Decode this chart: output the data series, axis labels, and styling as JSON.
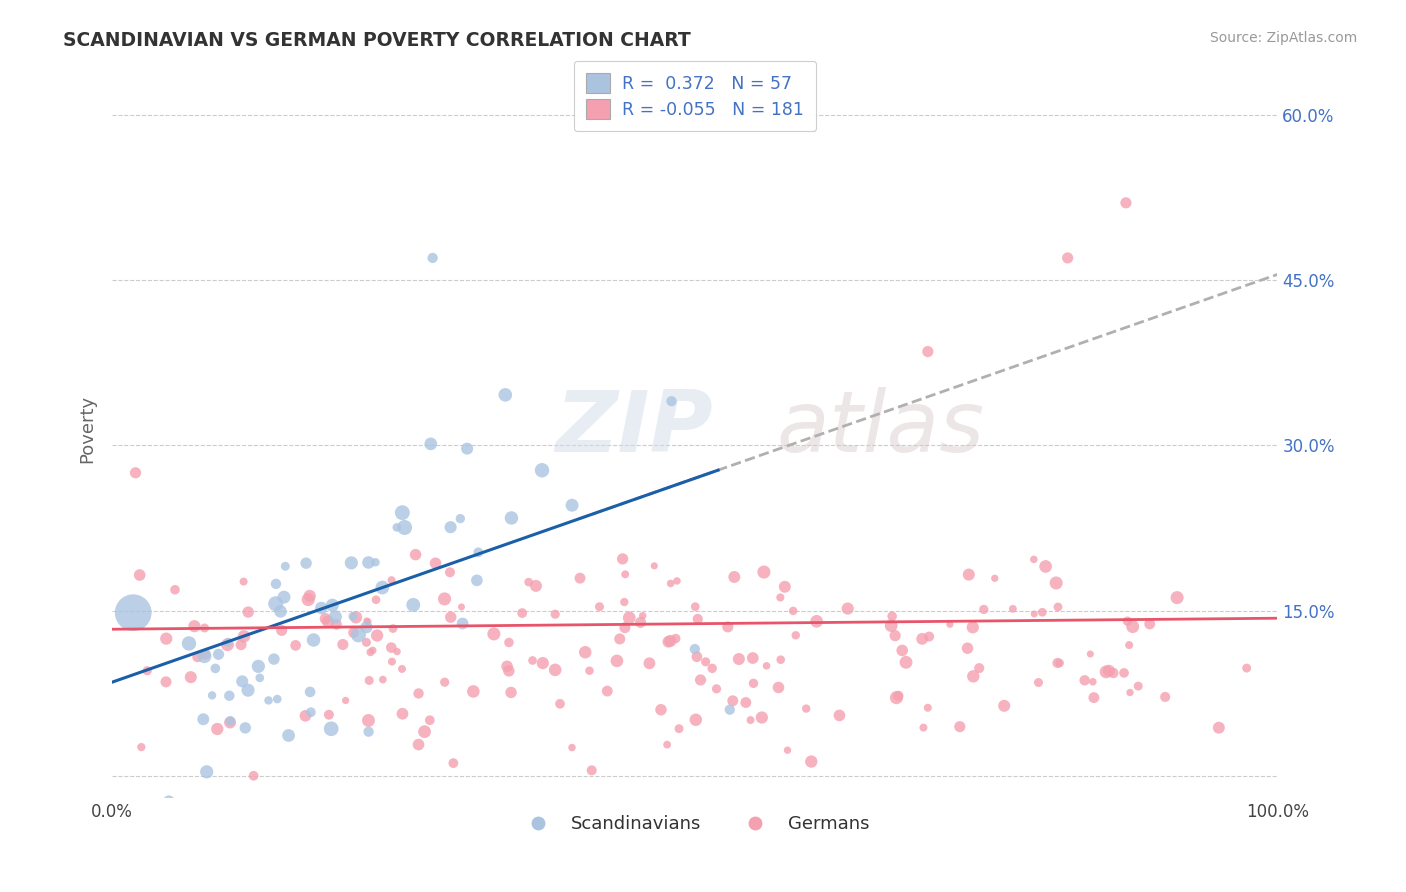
{
  "title": "SCANDINAVIAN VS GERMAN POVERTY CORRELATION CHART",
  "source": "Source: ZipAtlas.com",
  "ylabel": "Poverty",
  "xlabel": "",
  "xlim": [
    0.0,
    1.0
  ],
  "ylim": [
    -0.02,
    0.65
  ],
  "yticks": [
    0.0,
    0.15,
    0.3,
    0.45,
    0.6
  ],
  "ytick_labels_right": [
    "",
    "15.0%",
    "30.0%",
    "45.0%",
    "60.0%"
  ],
  "xtick_labels": [
    "0.0%",
    "100.0%"
  ],
  "grid_color": "#cccccc",
  "background_color": "#ffffff",
  "scandinavian_color": "#aac4e0",
  "german_color": "#f4a0b0",
  "scandinavian_line_color": "#1a5fa8",
  "german_line_color": "#e8556a",
  "trend_line_color": "#b0b0b0",
  "R_scandinavian": 0.372,
  "R_german": -0.055,
  "N_scandinavian": 57,
  "N_german": 181,
  "watermark_zip": "ZIP",
  "watermark_atlas": "atlas",
  "scandinavian_seed": 42,
  "german_seed": 7
}
